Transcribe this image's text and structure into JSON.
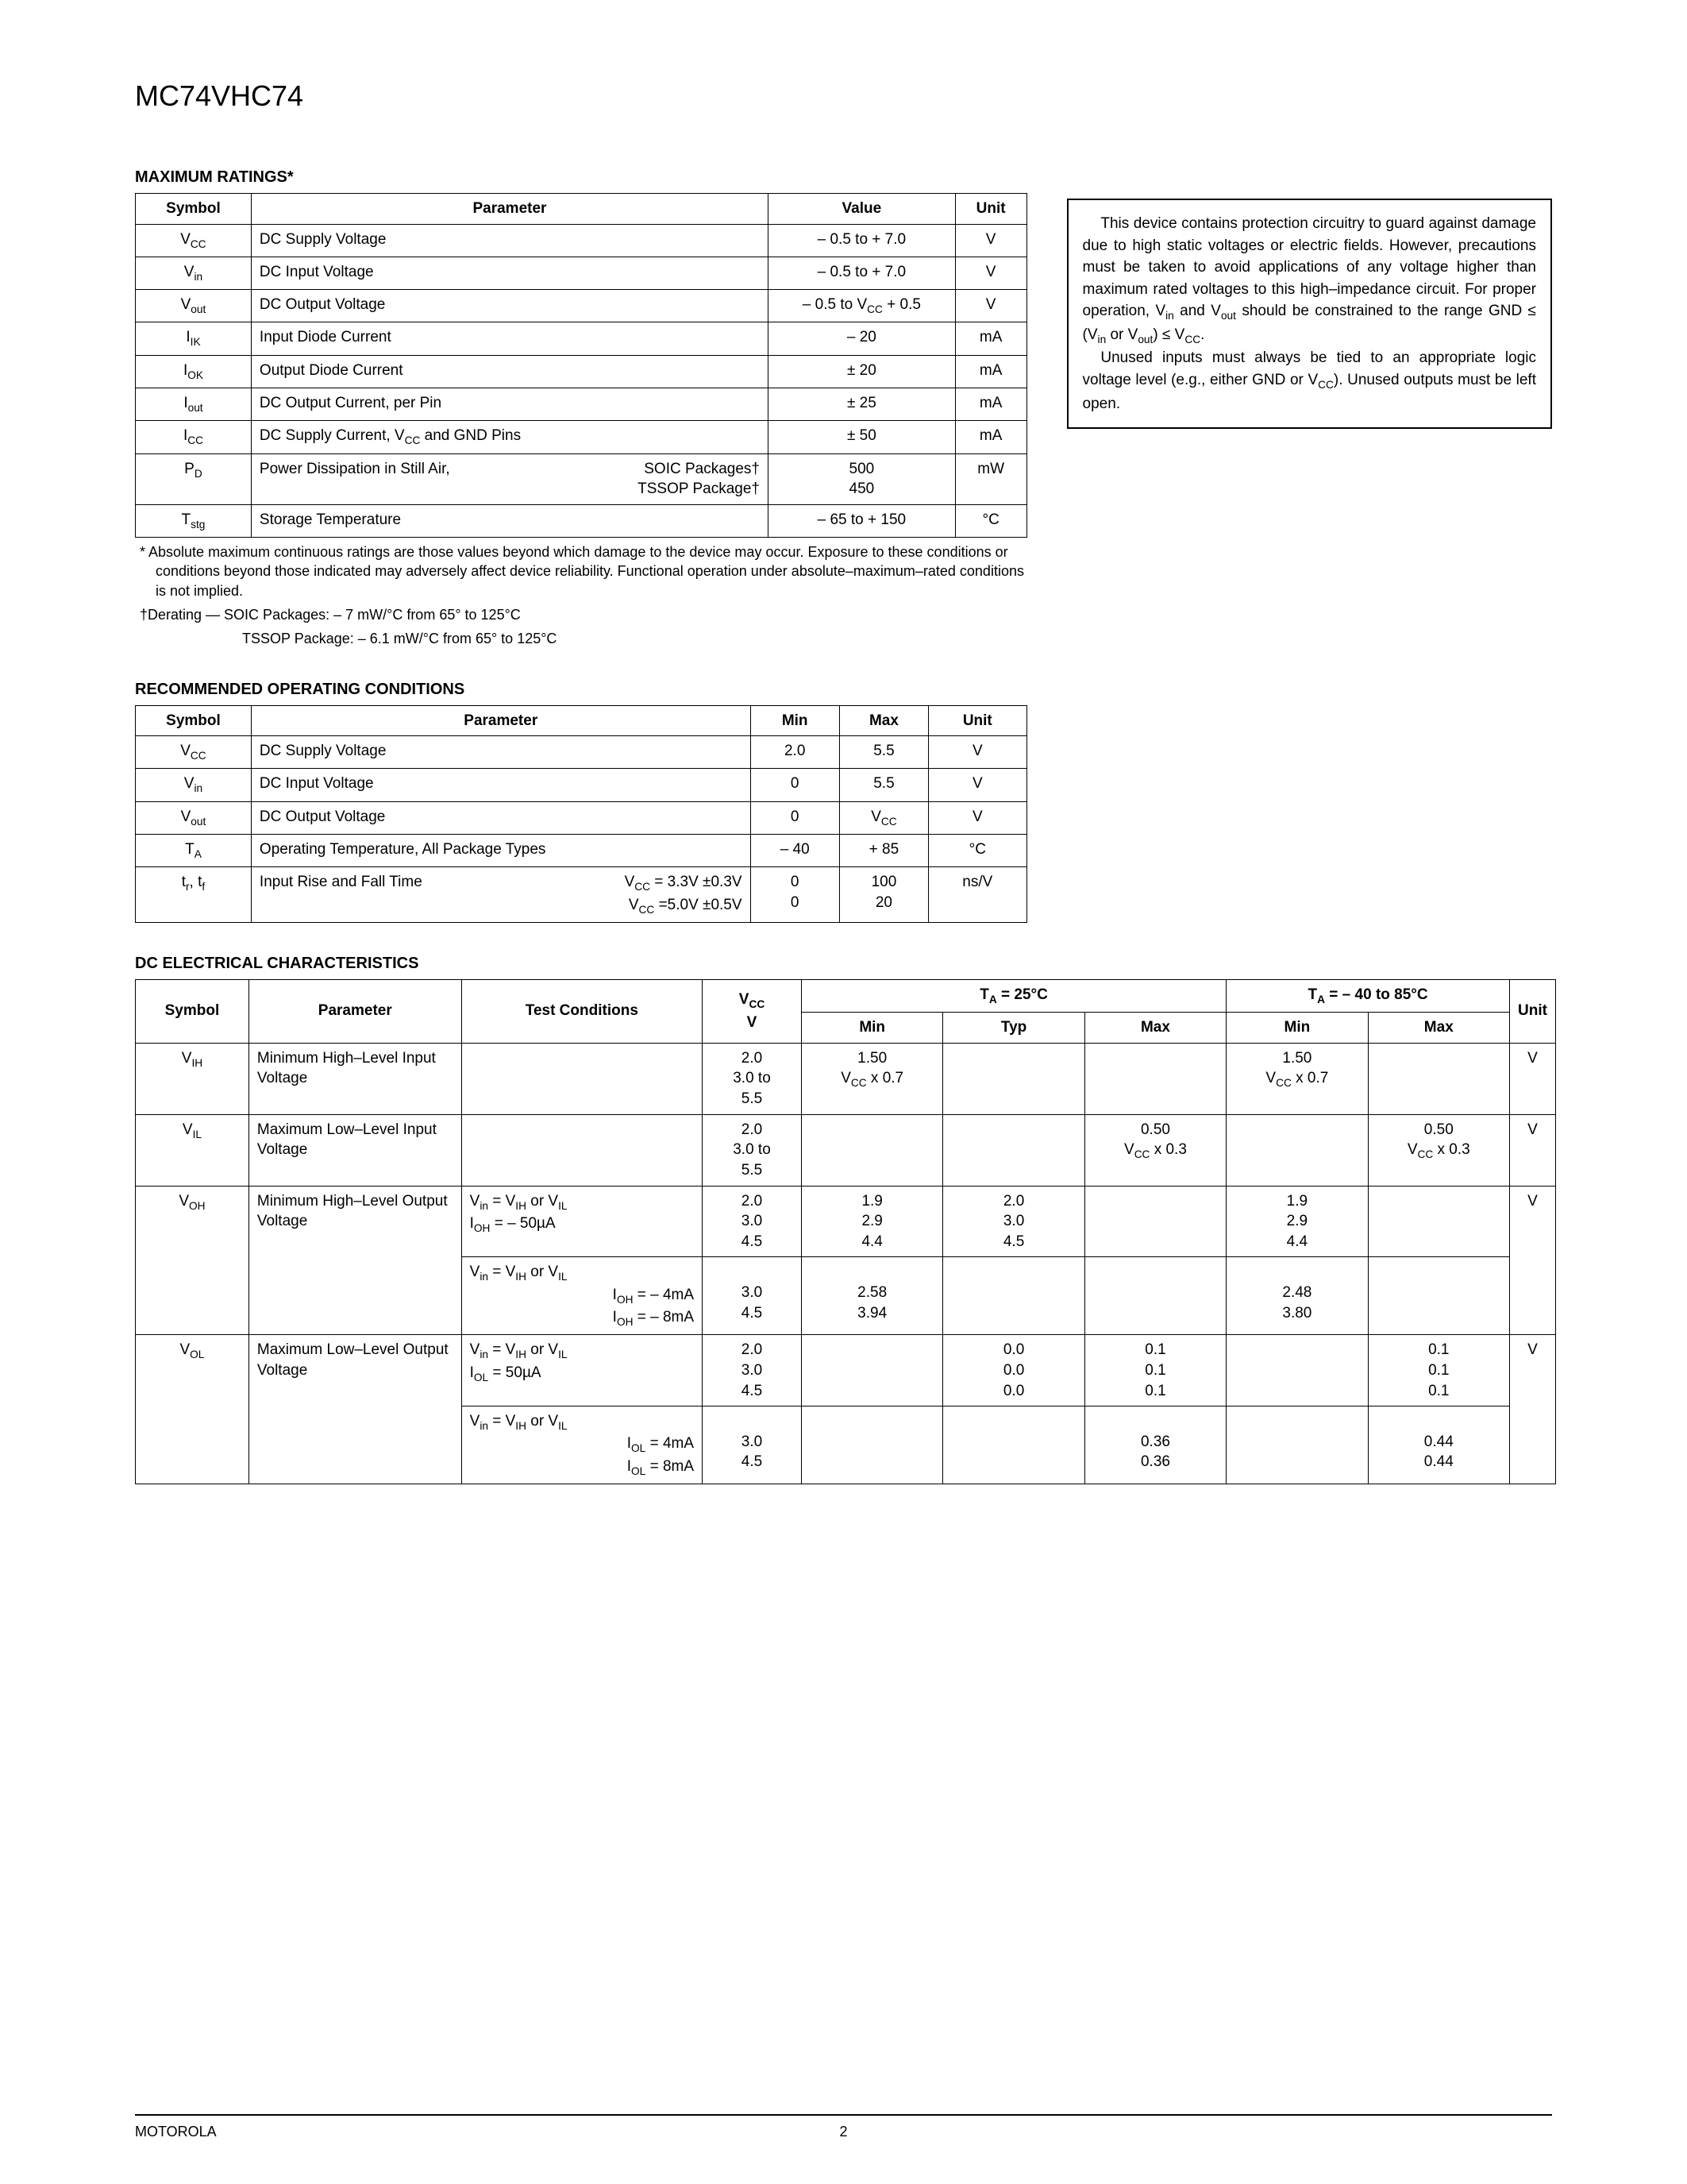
{
  "header": {
    "part_number": "MC74VHC74"
  },
  "footer": {
    "vendor": "MOTOROLA",
    "page": "2"
  },
  "sections": {
    "max_ratings_title": "MAXIMUM RATINGS*",
    "rec_op_title": "RECOMMENDED OPERATING CONDITIONS",
    "dc_elec_title": "DC ELECTRICAL CHARACTERISTICS"
  },
  "max_ratings": {
    "headers": [
      "Symbol",
      "Parameter",
      "Value",
      "Unit"
    ],
    "rows": [
      {
        "sym": "V<sub class='sub'>CC</sub>",
        "param": "DC Supply Voltage",
        "value": "– 0.5 to + 7.0",
        "unit": "V"
      },
      {
        "sym": "V<sub class='sub'>in</sub>",
        "param": "DC Input Voltage",
        "value": "– 0.5 to + 7.0",
        "unit": "V"
      },
      {
        "sym": "V<sub class='sub'>out</sub>",
        "param": "DC Output Voltage",
        "value": "– 0.5 to V<sub class='sub'>CC</sub> + 0.5",
        "unit": "V"
      },
      {
        "sym": "I<sub class='sub'>IK</sub>",
        "param": "Input Diode Current",
        "value": "– 20",
        "unit": "mA"
      },
      {
        "sym": "I<sub class='sub'>OK</sub>",
        "param": "Output Diode Current",
        "value": "± 20",
        "unit": "mA"
      },
      {
        "sym": "I<sub class='sub'>out</sub>",
        "param": "DC Output Current, per Pin",
        "value": "± 25",
        "unit": "mA"
      },
      {
        "sym": "I<sub class='sub'>CC</sub>",
        "param": "DC Supply Current, V<sub class='sub'>CC</sub> and GND Pins",
        "value": "± 50",
        "unit": "mA"
      },
      {
        "sym": "P<sub class='sub'>D</sub>",
        "param_multi": {
          "left": "Power Dissipation in Still Air,",
          "right": "SOIC Packages†\nTSSOP Package†"
        },
        "value": "500<br>450",
        "unit": "mW"
      },
      {
        "sym": "T<sub class='sub'>stg</sub>",
        "param": "Storage Temperature",
        "value": "– 65 to + 150",
        "unit": "°C"
      }
    ],
    "footnotes": [
      "*   Absolute maximum continuous ratings are those values beyond which damage to the device may occur. Exposure to these conditions or conditions beyond those indicated may adversely affect device reliability. Functional operation under absolute–maximum–rated conditions is not implied.",
      "†Derating   —  SOIC Packages: – 7 mW/°C from 65° to 125°C"
    ],
    "footnote_indent": "TSSOP Package: – 6.1 mW/°C from 65° to 125°C"
  },
  "rec_op": {
    "headers": [
      "Symbol",
      "Parameter",
      "Min",
      "Max",
      "Unit"
    ],
    "rows": [
      {
        "sym": "V<sub class='sub'>CC</sub>",
        "param": "DC Supply Voltage",
        "min": "2.0",
        "max": "5.5",
        "unit": "V"
      },
      {
        "sym": "V<sub class='sub'>in</sub>",
        "param": "DC Input Voltage",
        "min": "0",
        "max": "5.5",
        "unit": "V"
      },
      {
        "sym": "V<sub class='sub'>out</sub>",
        "param": "DC Output Voltage",
        "min": "0",
        "max": "V<sub class='sub'>CC</sub>",
        "unit": "V"
      },
      {
        "sym": "T<sub class='sub'>A</sub>",
        "param": "Operating Temperature, All Package Types",
        "min": "– 40",
        "max": "+ 85",
        "unit": "°C"
      },
      {
        "sym": "t<sub class='sub'>r</sub>, t<sub class='sub'>f</sub>",
        "param_multi": {
          "left": "Input Rise and Fall Time",
          "right": "V<sub class='sub'>CC</sub> = 3.3V ±0.3V\nV<sub class='sub'>CC</sub> =5.0V  ±0.5V"
        },
        "min": "0<br>0",
        "max": "100<br>20",
        "unit": "ns/V"
      }
    ]
  },
  "dc_elec": {
    "top_headers": {
      "vcc": "V<sub class='sub'>CC</sub><br>V",
      "ta25": "T<sub class='sub'>A</sub> = 25°C",
      "ta_range": "T<sub class='sub'>A</sub> = – 40 to 85°C"
    },
    "sub_headers": [
      "Symbol",
      "Parameter",
      "Test Conditions",
      "Min",
      "Typ",
      "Max",
      "Min",
      "Max",
      "Unit"
    ],
    "rows": [
      {
        "sym": "V<sub class='sub'>IH</sub>",
        "param": "Minimum High–Level Input Voltage",
        "tc": "",
        "vcc": "2.0<br>3.0 to<br>5.5",
        "min25": "1.50<br>V<sub class='sub'>CC</sub> x 0.7",
        "typ25": "",
        "max25": "",
        "minR": "1.50<br>V<sub class='sub'>CC</sub> x 0.7",
        "maxR": "",
        "unit": "V"
      },
      {
        "sym": "V<sub class='sub'>IL</sub>",
        "param": "Maximum Low–Level Input Voltage",
        "tc": "",
        "vcc": "2.0<br>3.0 to<br>5.5",
        "min25": "",
        "typ25": "",
        "max25": "0.50<br>V<sub class='sub'>CC</sub> x 0.3",
        "minR": "",
        "maxR": "0.50<br>V<sub class='sub'>CC</sub> x 0.3",
        "unit": "V"
      },
      {
        "sym": "V<sub class='sub'>OH</sub>",
        "param": "Minimum High–Level Output Voltage",
        "tc": "V<sub class='sub'>in</sub> = V<sub class='sub'>IH</sub> or V<sub class='sub'>IL</sub><br>I<sub class='sub'>OH</sub> = – 50µA",
        "vcc": "2.0<br>3.0<br>4.5",
        "min25": "1.9<br>2.9<br>4.4",
        "typ25": "2.0<br>3.0<br>4.5",
        "max25": "",
        "minR": "1.9<br>2.9<br>4.4",
        "maxR": "",
        "unit": "V",
        "subrows": [
          {
            "tc": "V<sub class='sub'>in</sub> = V<sub class='sub'>IH</sub> or V<sub class='sub'>IL</sub><br><span style='display:inline-block;width:100%;text-align:right'>I<sub class=sub>OH</sub> = – 4mA<br>I<sub class=sub>OH</sub> = – 8mA</span>",
            "vcc": "<br>3.0<br>4.5",
            "min25": "<br>2.58<br>3.94",
            "typ25": "",
            "max25": "",
            "minR": "<br>2.48<br>3.80",
            "maxR": ""
          }
        ]
      },
      {
        "sym": "V<sub class='sub'>OL</sub>",
        "param": "Maximum Low–Level Output Voltage",
        "tc": "V<sub class='sub'>in</sub> = V<sub class='sub'>IH</sub> or V<sub class='sub'>IL</sub><br>I<sub class='sub'>OL</sub> = 50µA",
        "vcc": "2.0<br>3.0<br>4.5",
        "min25": "",
        "typ25": "0.0<br>0.0<br>0.0",
        "max25": "0.1<br>0.1<br>0.1",
        "minR": "",
        "maxR": "0.1<br>0.1<br>0.1",
        "unit": "V",
        "subrows": [
          {
            "tc": "V<sub class='sub'>in</sub> = V<sub class='sub'>IH</sub> or V<sub class='sub'>IL</sub><br><span style='display:inline-block;width:100%;text-align:right'>I<sub class=sub>OL</sub> = 4mA<br>I<sub class=sub>OL</sub> = 8mA</span>",
            "vcc": "<br>3.0<br>4.5",
            "min25": "",
            "typ25": "",
            "max25": "<br>0.36<br>0.36",
            "minR": "",
            "maxR": "<br>0.44<br>0.44"
          }
        ]
      }
    ]
  },
  "protection_box": {
    "p1": "This device contains protection circuitry to guard against damage due to high static voltages or electric fields. However, precautions must be taken to avoid applications of any voltage higher than maximum rated voltages to this high–impedance circuit. For proper operation, V<sub class='sub'>in</sub> and V<sub class='sub'>out</sub> should be constrained to the range GND ≤ (V<sub class='sub'>in</sub> or V<sub class='sub'>out</sub>) ≤ V<sub class='sub'>CC</sub>.",
    "p2": "Unused inputs must always be tied to an appropriate logic voltage level (e.g., either GND or V<sub class='sub'>CC</sub>). Unused outputs must be left open."
  },
  "colors": {
    "text": "#000000",
    "background": "#ffffff",
    "border": "#000000"
  }
}
